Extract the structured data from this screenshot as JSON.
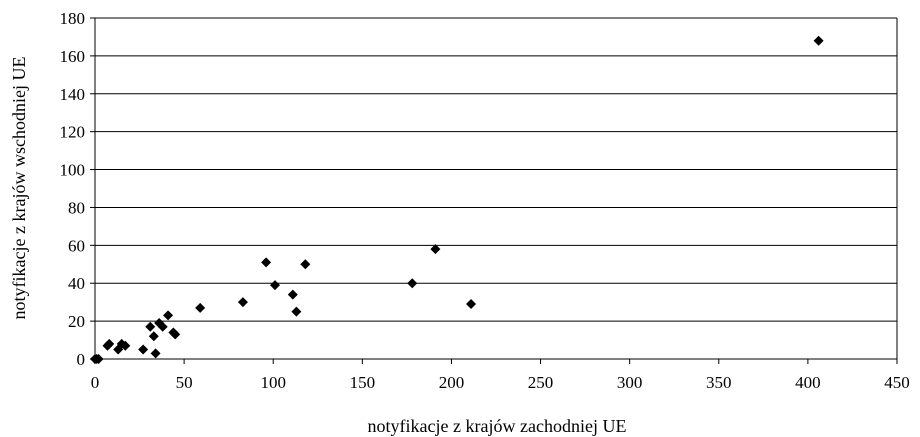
{
  "chart_data": {
    "type": "scatter",
    "title": "",
    "xlabel": "notyfikacje z krajów zachodniej UE",
    "ylabel": "notyfikacje z krajów wschodniej UE",
    "xlim": [
      0,
      450
    ],
    "ylim": [
      0,
      180
    ],
    "xticks": [
      0,
      50,
      100,
      150,
      200,
      250,
      300,
      350,
      400,
      450
    ],
    "yticks": [
      0,
      20,
      40,
      60,
      80,
      100,
      120,
      140,
      160,
      180
    ],
    "grid": "horizontal",
    "marker": "diamond",
    "marker_color": "#000000",
    "points": [
      {
        "x": 0,
        "y": 0
      },
      {
        "x": 1,
        "y": 0
      },
      {
        "x": 2,
        "y": 0
      },
      {
        "x": 7,
        "y": 7
      },
      {
        "x": 8,
        "y": 8
      },
      {
        "x": 13,
        "y": 5
      },
      {
        "x": 15,
        "y": 8
      },
      {
        "x": 17,
        "y": 7
      },
      {
        "x": 27,
        "y": 5
      },
      {
        "x": 31,
        "y": 17
      },
      {
        "x": 33,
        "y": 12
      },
      {
        "x": 34,
        "y": 3
      },
      {
        "x": 36,
        "y": 19
      },
      {
        "x": 38,
        "y": 17
      },
      {
        "x": 41,
        "y": 23
      },
      {
        "x": 44,
        "y": 14
      },
      {
        "x": 45,
        "y": 13
      },
      {
        "x": 59,
        "y": 27
      },
      {
        "x": 83,
        "y": 30
      },
      {
        "x": 96,
        "y": 51
      },
      {
        "x": 101,
        "y": 39
      },
      {
        "x": 111,
        "y": 34
      },
      {
        "x": 113,
        "y": 25
      },
      {
        "x": 118,
        "y": 50
      },
      {
        "x": 178,
        "y": 40
      },
      {
        "x": 191,
        "y": 58
      },
      {
        "x": 211,
        "y": 29
      },
      {
        "x": 406,
        "y": 168
      }
    ]
  }
}
